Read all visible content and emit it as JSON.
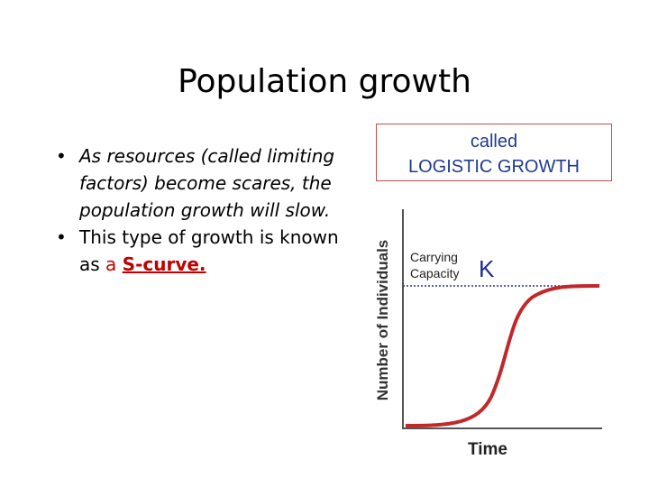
{
  "title": "Population growth",
  "bullets": [
    {
      "text": "As resources (called limiting factors) become scares, the population growth will slow."
    },
    {
      "text": "This type of growth is known as ",
      "red": "a ",
      "highlight": "S-curve."
    }
  ],
  "box": {
    "lines": [
      "called",
      "LOGISTIC GROWTH"
    ]
  },
  "diagram": {
    "y_axis_label": "Number of Individuals",
    "x_axis_label": "Time",
    "capacity_lines": [
      "Carrying",
      "Capacity"
    ],
    "k_label": "K"
  }
}
